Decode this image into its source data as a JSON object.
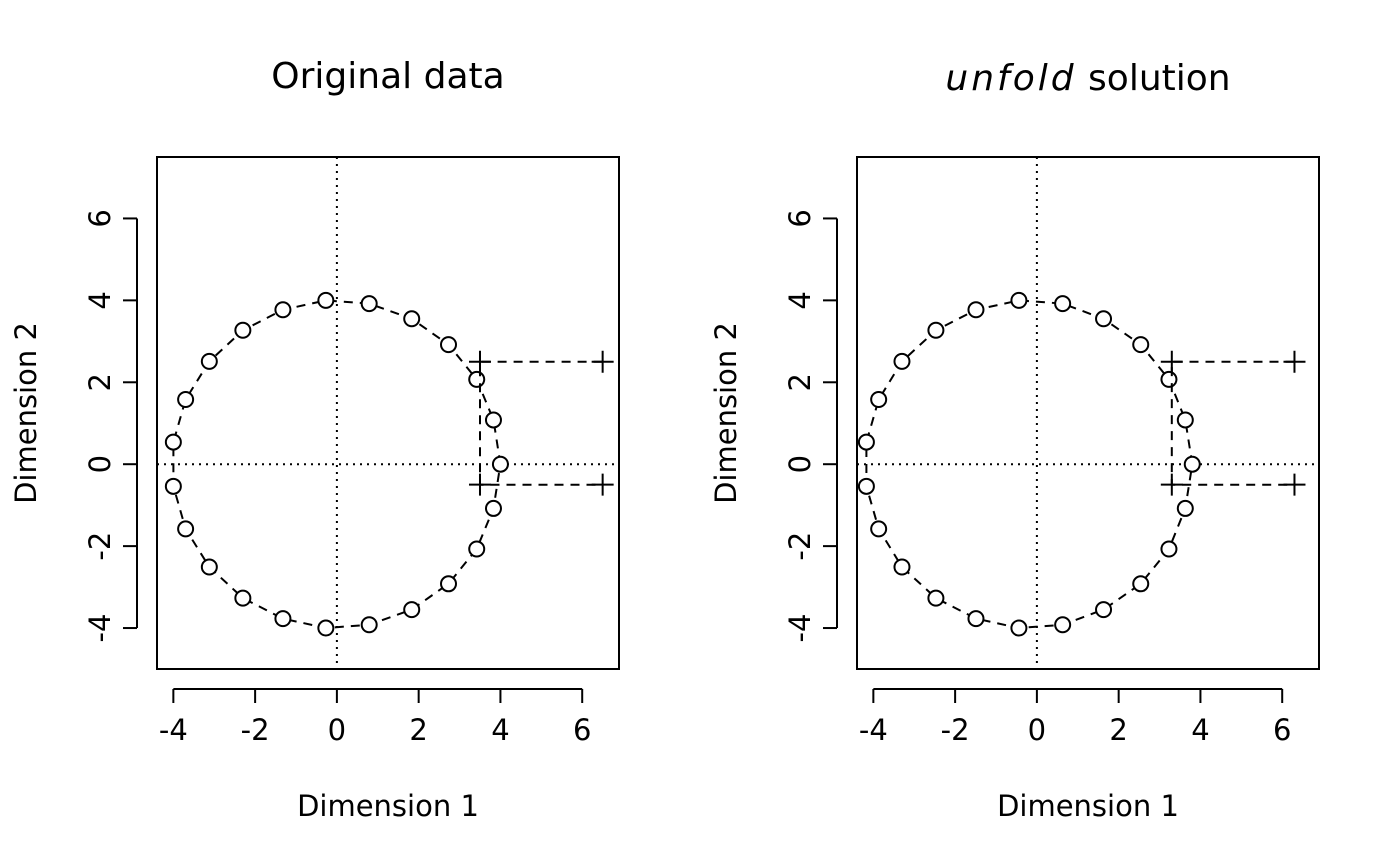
{
  "chart_data": [
    {
      "type": "scatter",
      "title": "Original data",
      "title_italic_part": "",
      "xlabel": "Dimension 1",
      "ylabel": "Dimension 2",
      "xlim": [
        -4.4,
        6.9
      ],
      "ylim": [
        -5.0,
        7.5
      ],
      "xticks": [
        -4,
        -2,
        0,
        2,
        4,
        6
      ],
      "yticks": [
        -4,
        -2,
        0,
        2,
        4,
        6
      ],
      "reference_lines": {
        "x": 0,
        "y": 0
      },
      "series": [
        {
          "marker": "circle",
          "connected": "closed-dashed",
          "x": [
            4.0,
            3.83,
            3.42,
            2.73,
            1.83,
            0.79,
            -0.27,
            -1.32,
            -2.3,
            -3.12,
            -3.7,
            -4.0,
            -4.0,
            -3.7,
            -3.12,
            -2.3,
            -1.32,
            -0.27,
            0.79,
            1.83,
            2.73,
            3.42,
            3.83
          ],
          "y": [
            0.0,
            1.08,
            2.07,
            2.92,
            3.55,
            3.92,
            4.0,
            3.77,
            3.27,
            2.51,
            1.58,
            0.54,
            -0.54,
            -1.58,
            -2.51,
            -3.27,
            -3.77,
            -4.0,
            -3.92,
            -3.55,
            -2.92,
            -2.07,
            -1.08
          ]
        },
        {
          "marker": "plus",
          "connected": "dashed",
          "x": [
            6.5,
            3.5,
            3.5,
            6.5
          ],
          "y": [
            2.5,
            2.5,
            -0.5,
            -0.5
          ]
        }
      ]
    },
    {
      "type": "scatter",
      "title": "solution",
      "title_italic_part": "unfold",
      "xlabel": "Dimension  1",
      "ylabel": "Dimension  2",
      "xlim": [
        -4.4,
        6.9
      ],
      "ylim": [
        -5.0,
        7.5
      ],
      "xticks": [
        -4,
        -2,
        0,
        2,
        4,
        6
      ],
      "yticks": [
        -4,
        -2,
        0,
        2,
        4,
        6
      ],
      "reference_lines": {
        "x": 0,
        "y": 0
      },
      "series": [
        {
          "marker": "circle",
          "connected": "closed-dashed",
          "x": [
            3.8,
            3.63,
            3.23,
            2.54,
            1.63,
            0.63,
            -0.44,
            -1.49,
            -2.47,
            -3.3,
            -3.87,
            -4.17,
            -4.17,
            -3.87,
            -3.3,
            -2.47,
            -1.49,
            -0.44,
            0.63,
            1.63,
            2.54,
            3.23,
            3.63
          ],
          "y": [
            0.0,
            1.08,
            2.07,
            2.92,
            3.55,
            3.92,
            4.0,
            3.77,
            3.27,
            2.51,
            1.58,
            0.54,
            -0.54,
            -1.58,
            -2.51,
            -3.27,
            -3.77,
            -4.0,
            -3.92,
            -3.55,
            -2.92,
            -2.07,
            -1.08
          ]
        },
        {
          "marker": "plus",
          "connected": "dashed",
          "x": [
            6.3,
            3.3,
            3.3,
            6.3
          ],
          "y": [
            2.5,
            2.5,
            -0.5,
            -0.5
          ]
        }
      ]
    }
  ]
}
